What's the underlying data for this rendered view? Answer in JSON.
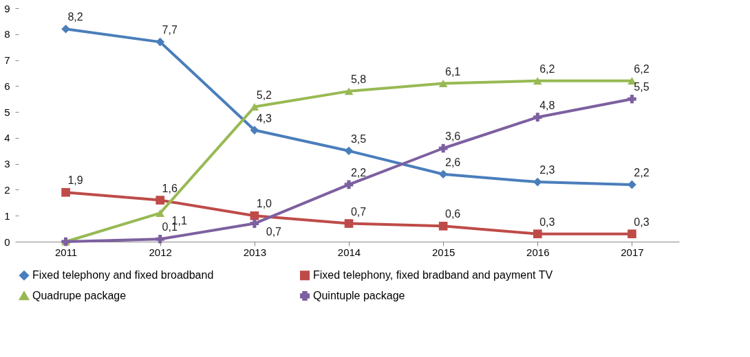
{
  "chart_data": {
    "type": "line",
    "categories": [
      "2011",
      "2012",
      "2013",
      "2014",
      "2015",
      "2016",
      "2017"
    ],
    "ylim": [
      0,
      9
    ],
    "yticks": [
      0,
      1,
      2,
      3,
      4,
      5,
      6,
      7,
      8,
      9
    ],
    "grid": false,
    "legend": "bottom",
    "series": [
      {
        "name": "Fixed telephony and fixed broadband",
        "color": "#4a7ebb",
        "marker": "diamond",
        "values": [
          8.2,
          7.7,
          4.3,
          3.5,
          2.6,
          2.3,
          2.2
        ],
        "value_labels": [
          "8,2",
          "7,7",
          "4,3",
          "3,5",
          "2,6",
          "2,3",
          "2,2"
        ]
      },
      {
        "name": "Fixed telephony, fixed bradband and payment TV",
        "color": "#be4b48",
        "marker": "square",
        "values": [
          1.9,
          1.6,
          1.0,
          0.7,
          0.6,
          0.3,
          0.3
        ],
        "value_labels": [
          "1,9",
          "1,6",
          "1,0",
          "0,7",
          "0,6",
          "0,3",
          "0,3"
        ]
      },
      {
        "name": "Quadrupe package",
        "color": "#98b954",
        "marker": "triangle",
        "values": [
          0,
          1.1,
          5.2,
          5.8,
          6.1,
          6.2,
          6.2
        ],
        "value_labels": [
          null,
          "1,1",
          "5,2",
          "5,8",
          "6,1",
          "6,2",
          "6,2"
        ]
      },
      {
        "name": "Quintuple package",
        "color": "#7d60a0",
        "marker": "cross",
        "values": [
          0,
          0.1,
          0.7,
          2.2,
          3.6,
          4.8,
          5.5
        ],
        "value_labels": [
          null,
          "0,1",
          "0,7",
          "2,2",
          "3,6",
          "4,8",
          "5,5"
        ]
      }
    ]
  }
}
